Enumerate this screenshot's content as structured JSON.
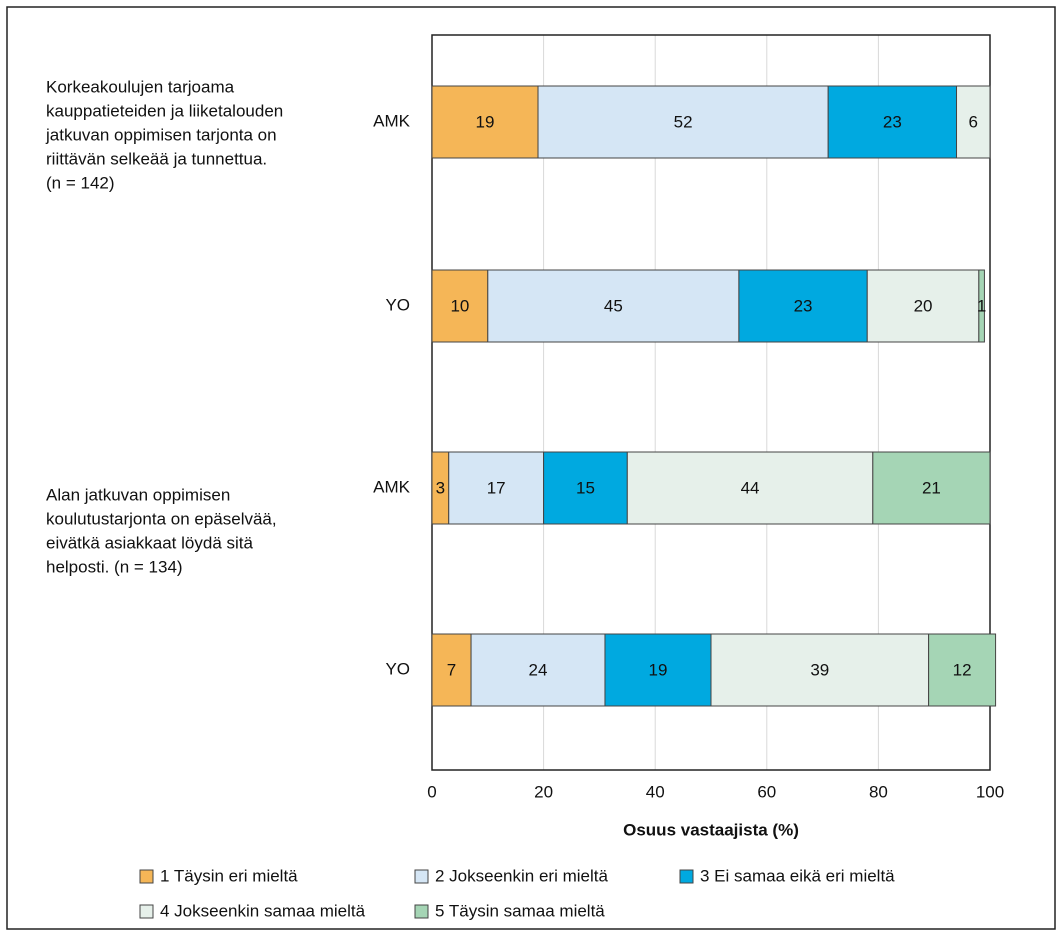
{
  "chart_data": {
    "type": "stacked_bar_horizontal",
    "group_labels": [
      [
        "Korkeakoulujen tarjoama",
        "kauppatieteiden ja liiketalouden",
        "jatkuvan oppimisen tarjonta on",
        "riittävän selkeää ja tunnettua.",
        "(n = 142)"
      ],
      [
        "Alan jatkuvan oppimisen",
        "koulutustarjonta on epäselvää,",
        "eivätkä asiakkaat löydä sitä",
        "helposti. (n = 134)"
      ]
    ],
    "categories": [
      "AMK",
      "YO",
      "AMK",
      "YO"
    ],
    "series": [
      {
        "name": "1 Täysin eri mieltä",
        "color": "#f5b657",
        "values": [
          19,
          10,
          3,
          7
        ]
      },
      {
        "name": "2 Jokseenkin eri mieltä",
        "color": "#d5e6f5",
        "values": [
          52,
          45,
          17,
          24
        ]
      },
      {
        "name": "3 Ei samaa eikä eri mieltä",
        "color": "#00a9e0",
        "values": [
          23,
          23,
          15,
          19
        ]
      },
      {
        "name": "4 Jokseenkin samaa mieltä",
        "color": "#e6f0ea",
        "values": [
          6,
          20,
          44,
          39
        ]
      },
      {
        "name": "5 Täysin samaa mieltä",
        "color": "#a5d5b5",
        "values": [
          null,
          1,
          21,
          12
        ]
      }
    ],
    "xlabel": "Osuus vastaajista (%)",
    "xlim": [
      0,
      100
    ],
    "xticks": [
      0,
      20,
      40,
      60,
      80,
      100
    ],
    "grid": true
  }
}
